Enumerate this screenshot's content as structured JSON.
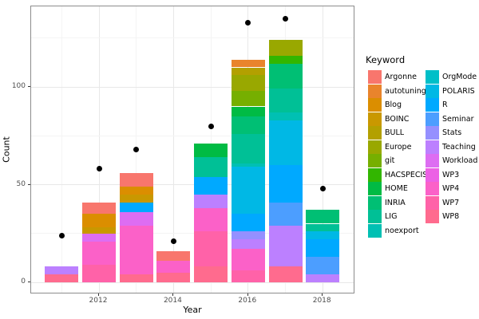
{
  "chart_data": {
    "type": "bar",
    "subtype": "stacked-bars-with-points",
    "title": "",
    "xlabel": "Year",
    "ylabel": "Count",
    "legend_title": "Keyword",
    "legend_position": "right",
    "grid": true,
    "y_major_ticks": [
      0,
      50,
      100
    ],
    "y_tick_labels": [
      "0",
      "50",
      "100"
    ],
    "y_minor_ticks": [
      25,
      75,
      125
    ],
    "x_major_years": [
      2012,
      2014,
      2016,
      2018
    ],
    "x_tick_labels": [
      "2012",
      "2014",
      "2016",
      "2018"
    ],
    "x_minor_years": [
      2011,
      2013,
      2015,
      2017
    ],
    "ylim": [
      -6,
      141
    ],
    "keywords": [
      {
        "name": "Argonne",
        "color": "#F8766D"
      },
      {
        "name": "autotuning",
        "color": "#E9842C"
      },
      {
        "name": "Blog",
        "color": "#DB8E00"
      },
      {
        "name": "BOINC",
        "color": "#C99800"
      },
      {
        "name": "BULL",
        "color": "#B3A000"
      },
      {
        "name": "Europe",
        "color": "#99A800"
      },
      {
        "name": "git",
        "color": "#76AF00"
      },
      {
        "name": "HACSPECIS",
        "color": "#32B600"
      },
      {
        "name": "HOME",
        "color": "#00BB44"
      },
      {
        "name": "INRIA",
        "color": "#00BF74"
      },
      {
        "name": "LIG",
        "color": "#00C096"
      },
      {
        "name": "noexport",
        "color": "#00C0B3"
      },
      {
        "name": "OrgMode",
        "color": "#00BFC8"
      },
      {
        "name": "POLARIS",
        "color": "#00B8E5"
      },
      {
        "name": "R",
        "color": "#00A9FF"
      },
      {
        "name": "Seminar",
        "color": "#4C9EFF"
      },
      {
        "name": "Stats",
        "color": "#9590FF"
      },
      {
        "name": "Teaching",
        "color": "#BC80FF"
      },
      {
        "name": "Workload",
        "color": "#DD6DF2"
      },
      {
        "name": "WP3",
        "color": "#EC61E5"
      },
      {
        "name": "WP4",
        "color": "#FB61C8"
      },
      {
        "name": "WP7",
        "color": "#FF62A8"
      },
      {
        "name": "WP8",
        "color": "#FF6B8E"
      }
    ],
    "years": [
      2011,
      2012,
      2013,
      2014,
      2015,
      2016,
      2017,
      2018
    ],
    "bars": [
      {
        "year": 2011,
        "total": 8,
        "segments": [
          {
            "keyword": "WP8",
            "value": 4
          },
          {
            "keyword": "Teaching",
            "value": 4
          }
        ]
      },
      {
        "year": 2012,
        "total": 41,
        "segments": [
          {
            "keyword": "WP7",
            "value": 9
          },
          {
            "keyword": "WP4",
            "value": 12
          },
          {
            "keyword": "Workload",
            "value": 4
          },
          {
            "keyword": "BOINC",
            "value": 3
          },
          {
            "keyword": "Blog",
            "value": 7
          },
          {
            "keyword": "Argonne",
            "value": 6
          }
        ]
      },
      {
        "year": 2013,
        "total": 56,
        "segments": [
          {
            "keyword": "WP8",
            "value": 4
          },
          {
            "keyword": "WP4",
            "value": 25
          },
          {
            "keyword": "Workload",
            "value": 7
          },
          {
            "keyword": "R",
            "value": 5
          },
          {
            "keyword": "BOINC",
            "value": 4
          },
          {
            "keyword": "Blog",
            "value": 4
          },
          {
            "keyword": "Argonne",
            "value": 7
          }
        ]
      },
      {
        "year": 2014,
        "total": 16,
        "segments": [
          {
            "keyword": "WP8",
            "value": 5
          },
          {
            "keyword": "WP4",
            "value": 6
          },
          {
            "keyword": "Argonne",
            "value": 5
          }
        ]
      },
      {
        "year": 2015,
        "total": 71,
        "segments": [
          {
            "keyword": "WP8",
            "value": 8
          },
          {
            "keyword": "WP7",
            "value": 18
          },
          {
            "keyword": "WP4",
            "value": 12
          },
          {
            "keyword": "Teaching",
            "value": 7
          },
          {
            "keyword": "R",
            "value": 9
          },
          {
            "keyword": "LIG",
            "value": 10
          },
          {
            "keyword": "HOME",
            "value": 7
          }
        ]
      },
      {
        "year": 2016,
        "total": 114,
        "segments": [
          {
            "keyword": "WP7",
            "value": 6
          },
          {
            "keyword": "WP4",
            "value": 11
          },
          {
            "keyword": "Teaching",
            "value": 5
          },
          {
            "keyword": "Stats",
            "value": 4
          },
          {
            "keyword": "R",
            "value": 9
          },
          {
            "keyword": "POLARIS",
            "value": 24
          },
          {
            "keyword": "noexport",
            "value": 2
          },
          {
            "keyword": "LIG",
            "value": 15
          },
          {
            "keyword": "INRIA",
            "value": 9
          },
          {
            "keyword": "HOME",
            "value": 5
          },
          {
            "keyword": "git",
            "value": 8
          },
          {
            "keyword": "Europe",
            "value": 8
          },
          {
            "keyword": "BULL",
            "value": 4
          },
          {
            "keyword": "autotuning",
            "value": 4
          }
        ]
      },
      {
        "year": 2017,
        "total": 124,
        "segments": [
          {
            "keyword": "WP8",
            "value": 8
          },
          {
            "keyword": "Teaching",
            "value": 21
          },
          {
            "keyword": "Seminar",
            "value": 12
          },
          {
            "keyword": "R",
            "value": 19
          },
          {
            "keyword": "POLARIS",
            "value": 23
          },
          {
            "keyword": "noexport",
            "value": 4
          },
          {
            "keyword": "LIG",
            "value": 12
          },
          {
            "keyword": "INRIA",
            "value": 13
          },
          {
            "keyword": "HACSPECIS",
            "value": 4
          },
          {
            "keyword": "Europe",
            "value": 8
          }
        ]
      },
      {
        "year": 2018,
        "total": 37,
        "segments": [
          {
            "keyword": "Teaching",
            "value": 4
          },
          {
            "keyword": "Seminar",
            "value": 9
          },
          {
            "keyword": "R",
            "value": 9
          },
          {
            "keyword": "POLARIS",
            "value": 4
          },
          {
            "keyword": "LIG",
            "value": 4
          },
          {
            "keyword": "INRIA",
            "value": 7
          }
        ]
      }
    ],
    "points": [
      {
        "year": 2011,
        "value": 24
      },
      {
        "year": 2012,
        "value": 58
      },
      {
        "year": 2013,
        "value": 68
      },
      {
        "year": 2014,
        "value": 21
      },
      {
        "year": 2015,
        "value": 80
      },
      {
        "year": 2016,
        "value": 133
      },
      {
        "year": 2017,
        "value": 135
      },
      {
        "year": 2018,
        "value": 48
      }
    ]
  },
  "colors": {
    "background": "#FFFFFF",
    "panel_border": "#8C8C8C",
    "grid_major": "#E8E8E8",
    "grid_minor": "#F4F4F4",
    "tick_label": "#4D4D4D",
    "axis_title": "#000000",
    "point": "#000000"
  }
}
